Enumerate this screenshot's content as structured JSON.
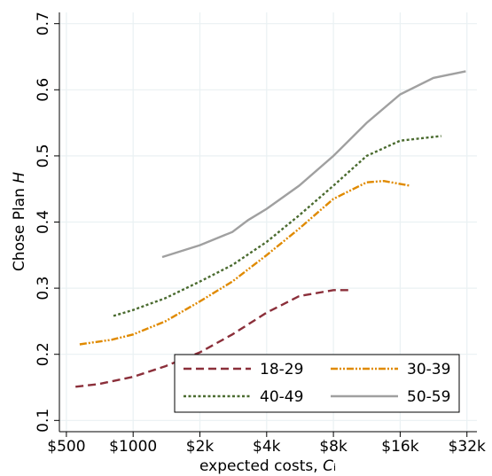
{
  "chart_data": {
    "type": "line",
    "x_label": "expected costs,",
    "x_label_var": "C",
    "x_label_sub": "i",
    "y_label": "Chose Plan",
    "y_label_var": "H",
    "x_log_base": 2,
    "xlim": [
      465,
      35500
    ],
    "ylim": [
      0.083,
      0.717
    ],
    "xticks": [
      {
        "value": 500,
        "label": "$500"
      },
      {
        "value": 1000,
        "label": "$1000"
      },
      {
        "value": 2000,
        "label": "$2k"
      },
      {
        "value": 4000,
        "label": "$4k"
      },
      {
        "value": 8000,
        "label": "$8k"
      },
      {
        "value": 16000,
        "label": "$16k"
      },
      {
        "value": 32000,
        "label": "$32k"
      }
    ],
    "yticks": [
      0.1,
      0.2,
      0.3,
      0.4,
      0.5,
      0.6,
      0.7
    ],
    "grid": true,
    "legend": "bottom-right",
    "series": [
      {
        "name": "18-29",
        "color": "#8b2f3a",
        "dash": "dashed",
        "x": [
          550,
          700,
          1000,
          1400,
          2000,
          2800,
          4000,
          5600,
          8000,
          9500
        ],
        "y": [
          0.151,
          0.155,
          0.166,
          0.182,
          0.203,
          0.23,
          0.263,
          0.288,
          0.297,
          0.297
        ]
      },
      {
        "name": "30-39",
        "color": "#e08a00",
        "dash": "dashdotdot",
        "x": [
          574,
          800,
          1000,
          1400,
          2000,
          2800,
          4000,
          5600,
          8000,
          11300,
          13500,
          17700
        ],
        "y": [
          0.215,
          0.222,
          0.23,
          0.25,
          0.28,
          0.31,
          0.35,
          0.39,
          0.435,
          0.46,
          0.462,
          0.455
        ]
      },
      {
        "name": "40-49",
        "color": "#4a6b2f",
        "dash": "dotted",
        "x": [
          815,
          1000,
          1400,
          2000,
          2800,
          4000,
          5600,
          8000,
          11300,
          16000,
          24500
        ],
        "y": [
          0.258,
          0.267,
          0.285,
          0.31,
          0.335,
          0.37,
          0.41,
          0.455,
          0.5,
          0.523,
          0.53
        ]
      },
      {
        "name": "50-59",
        "color": "#a0a0a0",
        "dash": "solid",
        "x": [
          1353,
          2000,
          2800,
          3300,
          4000,
          5600,
          8000,
          11300,
          16000,
          22600,
          31600
        ],
        "y": [
          0.347,
          0.365,
          0.385,
          0.403,
          0.42,
          0.455,
          0.5,
          0.55,
          0.593,
          0.618,
          0.628
        ]
      }
    ]
  }
}
